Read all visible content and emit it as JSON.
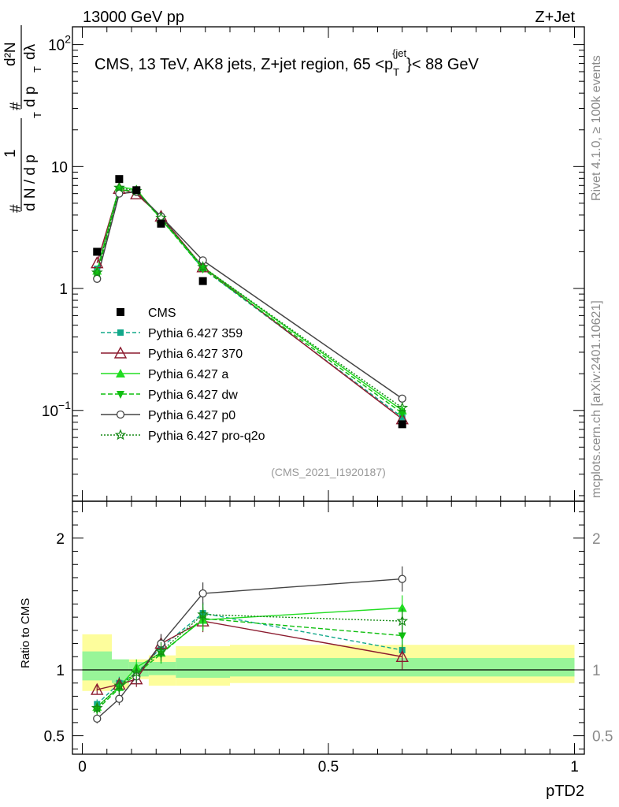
{
  "header": {
    "energy_label": "13000 GeV pp",
    "process_label": "Z+Jet"
  },
  "side_labels": {
    "rivet": "Rivet 4.1.0, ≥ 100k events",
    "mcplots": "mcplots.cern.ch [arXiv:2401.10621]"
  },
  "chart_data": {
    "type": "line",
    "title": "CMS, 13 TeV, AK8 jets, Z+jet region, 65 <p_T^{jet}< 88 GeV",
    "title_parts": {
      "main": "CMS, 13 TeV, AK8 jets, Z+jet region, 65 <p",
      "sub": "T",
      "sup": "{jet",
      "close": "}< 88 GeV"
    },
    "watermark": "(CMS_2021_I1920187)",
    "xlabel": "pTD2",
    "ylabel_parts": {
      "hash1": "#",
      "one": "1",
      "dN_over": "d N / d p",
      "T": "T",
      "hash2": "#",
      "d2N": "d²N",
      "dpT": "d p",
      "dlambda": "dλ"
    },
    "ratio_ylabel": "Ratio to CMS",
    "xlim": [
      -0.02,
      1.02
    ],
    "ylim": [
      0.018,
      140
    ],
    "ratio_ylim": [
      0.36,
      2.28
    ],
    "x_ticks": [
      0,
      0.5,
      1
    ],
    "x_tick_labels": [
      "0",
      "0.5",
      "1"
    ],
    "y_ticks": [
      0.1,
      1,
      10,
      100
    ],
    "y_tick_labels": [
      {
        "base": "10",
        "exp": "−1"
      },
      {
        "base": "1",
        "exp": ""
      },
      {
        "base": "10",
        "exp": ""
      },
      {
        "base": "10",
        "exp": "2"
      }
    ],
    "ratio_ticks": [
      0.5,
      1,
      2
    ],
    "ratio_tick_labels": [
      "0.5",
      "1",
      "2"
    ],
    "x": [
      0.03,
      0.075,
      0.11,
      0.16,
      0.245,
      0.65
    ],
    "data_series": {
      "name": "CMS",
      "values": [
        2.0,
        7.9,
        6.4,
        3.4,
        1.15,
        0.077
      ]
    },
    "band_bins": [
      0.0,
      0.06,
      0.095,
      0.135,
      0.19,
      0.3,
      1.0
    ],
    "band_inner": [
      [
        0.92,
        1.14
      ],
      [
        0.9,
        1.08
      ],
      [
        0.95,
        1.06
      ],
      [
        0.96,
        1.06
      ],
      [
        0.94,
        1.09
      ],
      [
        0.95,
        1.09
      ]
    ],
    "band_outer": [
      [
        0.84,
        1.27
      ],
      [
        0.86,
        1.06
      ],
      [
        0.93,
        1.08
      ],
      [
        0.88,
        1.11
      ],
      [
        0.88,
        1.18
      ],
      [
        0.9,
        1.19
      ]
    ],
    "series": [
      {
        "name": "Pythia 6.427 359",
        "color": "#12a88a",
        "dash": "5,3",
        "marker": "square",
        "values": [
          1.45,
          6.5,
          6.2,
          3.8,
          1.45,
          0.088
        ],
        "ratio": [
          0.74,
          0.9,
          0.97,
          1.17,
          1.43,
          1.15
        ]
      },
      {
        "name": "Pythia 6.427 370",
        "color": "#8b1a2e",
        "dash": "",
        "marker": "triangle-open",
        "values": [
          1.62,
          6.6,
          5.95,
          3.9,
          1.5,
          0.085
        ],
        "ratio": [
          0.85,
          0.89,
          0.93,
          1.2,
          1.37,
          1.1
        ]
      },
      {
        "name": "Pythia 6.427 a",
        "color": "#22dd22",
        "dash": "",
        "marker": "triangle",
        "values": [
          1.4,
          6.8,
          6.5,
          3.7,
          1.5,
          0.1
        ],
        "ratio": [
          0.72,
          0.87,
          1.02,
          1.13,
          1.38,
          1.47
        ]
      },
      {
        "name": "Pythia 6.427 dw",
        "color": "#0fbf0f",
        "dash": "6,3",
        "marker": "triangle-down",
        "values": [
          1.3,
          6.4,
          6.3,
          3.7,
          1.45,
          0.095
        ],
        "ratio": [
          0.7,
          0.86,
          0.97,
          1.12,
          1.39,
          1.26
        ]
      },
      {
        "name": "Pythia 6.427 p0",
        "color": "#444444",
        "dash": "",
        "marker": "circle-open",
        "values": [
          1.2,
          6.0,
          6.2,
          3.9,
          1.7,
          0.125
        ],
        "ratio": [
          0.63,
          0.78,
          0.95,
          1.2,
          1.58,
          1.69
        ]
      },
      {
        "name": "Pythia 6.427 pro-q2o",
        "color": "#158815",
        "dash": "2,2",
        "marker": "star",
        "values": [
          1.35,
          6.7,
          6.3,
          3.8,
          1.5,
          0.105
        ],
        "ratio": [
          0.71,
          0.88,
          0.98,
          1.14,
          1.42,
          1.37
        ]
      }
    ],
    "legend_position": "lower-left"
  }
}
